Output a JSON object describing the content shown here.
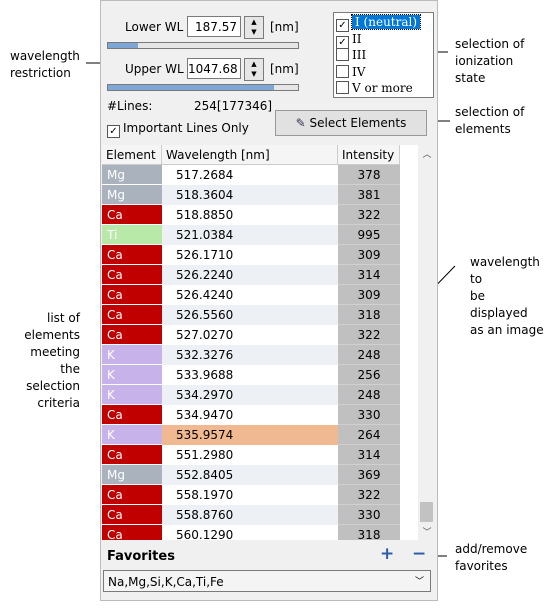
{
  "wavelength": {
    "lower": {
      "label": "Lower WL",
      "value": "187.57",
      "unit": "[nm]"
    },
    "upper": {
      "label": "Upper WL",
      "value": "1047.68",
      "unit": "[nm]"
    }
  },
  "ionization": {
    "items": [
      {
        "label": "I (neutral)",
        "checked": true
      },
      {
        "label": "II",
        "checked": true
      },
      {
        "label": "III",
        "checked": false
      },
      {
        "label": "IV",
        "checked": false
      },
      {
        "label": "V or more",
        "checked": false
      }
    ]
  },
  "lines": {
    "label": "#Lines:",
    "value": "254[177346]"
  },
  "important": {
    "label": "Important Lines Only",
    "checked": true
  },
  "select_button": "Select Elements",
  "table": {
    "headers": [
      "Element",
      "Wavelength [nm]",
      "Intensity"
    ],
    "rows": [
      [
        "Mg",
        "517.2684",
        "378"
      ],
      [
        "Mg",
        "518.3604",
        "381"
      ],
      [
        "Ca",
        "518.8850",
        "322"
      ],
      [
        "Ti",
        "521.0384",
        "995"
      ],
      [
        "Ca",
        "526.1710",
        "309"
      ],
      [
        "Ca",
        "526.2240",
        "314"
      ],
      [
        "Ca",
        "526.4240",
        "309"
      ],
      [
        "Ca",
        "526.5560",
        "318"
      ],
      [
        "Ca",
        "527.0270",
        "322"
      ],
      [
        "K",
        "532.3276",
        "248"
      ],
      [
        "K",
        "533.9688",
        "256"
      ],
      [
        "K",
        "534.2970",
        "248"
      ],
      [
        "Ca",
        "534.9470",
        "330"
      ],
      [
        "K",
        "535.9574",
        "264"
      ],
      [
        "Ca",
        "551.2980",
        "314"
      ],
      [
        "Mg",
        "552.8405",
        "369"
      ],
      [
        "Ca",
        "558.1970",
        "322"
      ],
      [
        "Ca",
        "558.8760",
        "330"
      ],
      [
        "Ca",
        "560.1290",
        "318"
      ]
    ],
    "highlighted_row": 13,
    "element_colors": {
      "Mg": "#aab3bd",
      "Ca": "#c00000",
      "Ti": "#b9e9a9",
      "K": "#c7b3ea"
    }
  },
  "favorites": {
    "title": "Favorites",
    "add": "+",
    "remove": "−",
    "selected": "Na,Mg,Si,K,Ca,Ti,Fe"
  },
  "annotations": {
    "wavelength": [
      "wavelength",
      "restriction"
    ],
    "ionization": [
      "selection of",
      "ionization state"
    ],
    "elements": [
      "selection of",
      "elements"
    ],
    "image": [
      "wavelength to",
      "be displayed",
      "as an image"
    ],
    "list": [
      "list of",
      "elements",
      "meeting the",
      "selection",
      "criteria"
    ],
    "favorites": [
      "add/remove",
      "favorites"
    ]
  }
}
